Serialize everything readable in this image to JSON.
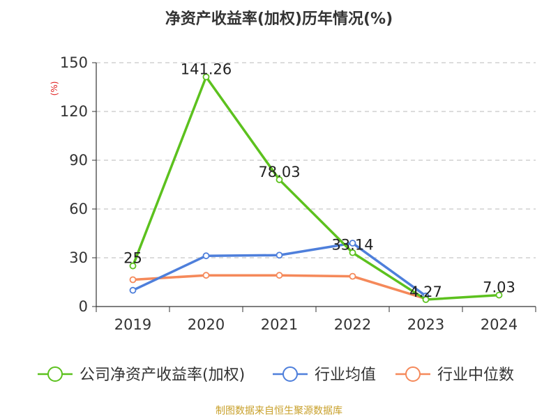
{
  "chart_data": {
    "type": "line",
    "title": "净资产收益率(加权)历年情况(%)",
    "ylabel": "(%)",
    "xlabel": "",
    "categories": [
      "2019",
      "2020",
      "2021",
      "2022",
      "2023",
      "2024"
    ],
    "ylim": [
      0,
      150
    ],
    "yticks": [
      0,
      30,
      60,
      90,
      120,
      150
    ],
    "grid": true,
    "legend_position": "bottom",
    "series": [
      {
        "name": "公司净资产收益率(加权)",
        "color": "#5cc11e",
        "values": [
          25,
          141.26,
          78.03,
          33.14,
          4.27,
          7.03
        ],
        "labels": [
          "25",
          "141.26",
          "78.03",
          "33.14",
          "4.27",
          "7.03"
        ]
      },
      {
        "name": "行业均值",
        "color": "#4e7fdb",
        "values": [
          10,
          31.2,
          31.6,
          39,
          6.5,
          null
        ]
      },
      {
        "name": "行业中位数",
        "color": "#f5895a",
        "values": [
          16.5,
          19.2,
          19.2,
          18.6,
          4.8,
          null
        ]
      }
    ],
    "source": "制图数据来自恒生聚源数据库"
  }
}
